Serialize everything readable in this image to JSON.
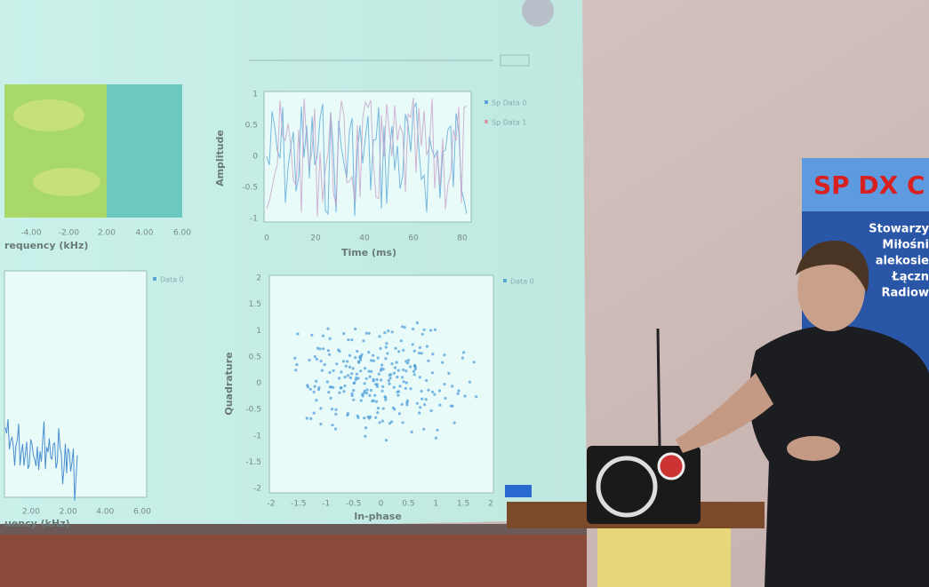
{
  "screen": {
    "spectrum_top": {
      "x_label": "requency (kHz)",
      "x_ticks": [
        "-4.00",
        "-2.00",
        "2.00",
        "4.00",
        "6.00"
      ]
    },
    "time_plot": {
      "y_label": "Amplitude",
      "x_label": "Time (ms)",
      "x_ticks": [
        "0",
        "20",
        "40",
        "60",
        "80"
      ],
      "y_ticks": [
        "1",
        "0.5",
        "0",
        "-0.5",
        "-1"
      ],
      "legend": [
        "Sp Data 0",
        "Sp Data 1"
      ]
    },
    "spectrum_bottom": {
      "x_label": "uency (kHz)",
      "x_ticks": [
        "2.00",
        "2.00",
        "4.00",
        "6.00"
      ],
      "legend": "Data 0"
    },
    "constellation": {
      "y_label": "Quadrature",
      "x_label": "In-phase",
      "x_ticks": [
        "-2",
        "-1.5",
        "-1",
        "-0.5",
        "0",
        "0.5",
        "1",
        "1.5",
        "2"
      ],
      "y_ticks": [
        "2",
        "1.5",
        "1",
        "0.5",
        "0",
        "-0.5",
        "-1",
        "-1.5",
        "-2"
      ],
      "legend": "Data 0"
    }
  },
  "banner": {
    "title": "SP DX C",
    "lines": [
      "Stowarzy",
      "Miłośni",
      "alekosie",
      "Łączn",
      "Radiow"
    ]
  }
}
